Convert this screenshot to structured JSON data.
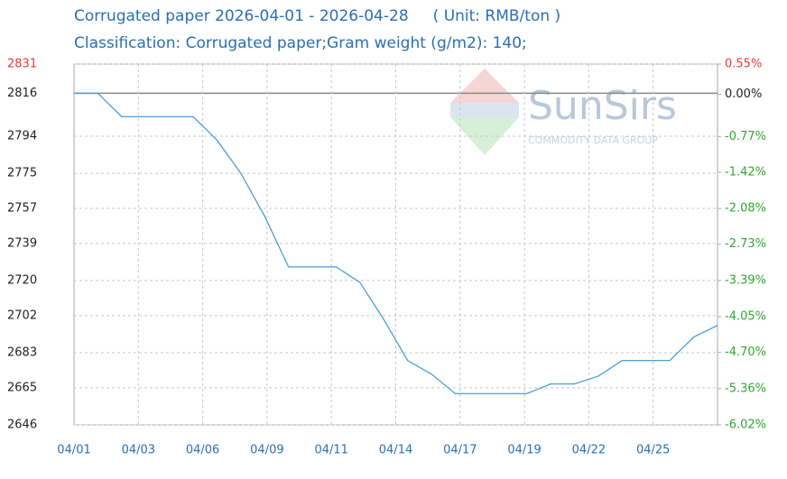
{
  "chart_data": {
    "type": "line",
    "title": "Corrugated paper 2026-04-01 - 2026-04-28     ( Unit: RMB/ton )",
    "subtitle": "Classification: Corrugated paper;Gram weight (g/m2): 140;",
    "watermark": "SunSirs",
    "watermark_sub": "COMMODITY DATA GROUP",
    "xticks": [
      "04/01",
      "04/03",
      "04/06",
      "04/09",
      "04/11",
      "04/14",
      "04/17",
      "04/19",
      "04/22",
      "04/25"
    ],
    "values": [
      2816,
      2816,
      2804,
      2804,
      2804,
      2804,
      2792,
      2775,
      2753,
      2727,
      2727,
      2727,
      2719,
      2700,
      2679,
      2672,
      2662,
      2662,
      2662,
      2662,
      2667,
      2667,
      2671,
      2679,
      2679,
      2679,
      2691,
      2697
    ],
    "color": "#4a9fd8",
    "reference": 2816,
    "ylim": [
      2646,
      2831
    ],
    "yticks": [
      2831,
      2816,
      2794,
      2775,
      2757,
      2739,
      2720,
      2702,
      2683,
      2665,
      2646
    ],
    "y2lim": [
      -6.02,
      0.55
    ],
    "y2ticks": [
      {
        "value": 0.55,
        "label": "0.55%"
      },
      {
        "value": 0,
        "label": "0.00%"
      },
      {
        "value": -0.77,
        "label": "-0.77%"
      },
      {
        "value": -1.42,
        "label": "-1.42%"
      },
      {
        "value": -2.08,
        "label": "-2.08%"
      },
      {
        "value": -2.73,
        "label": "-2.73%"
      },
      {
        "value": -3.39,
        "label": "-3.39%"
      },
      {
        "value": -4.05,
        "label": "-4.05%"
      },
      {
        "value": -4.7,
        "label": "-4.70%"
      },
      {
        "value": -5.36,
        "label": "-5.36%"
      },
      {
        "value": -6.02,
        "label": "-6.02%"
      }
    ],
    "up_color": "#e8383d",
    "down_color": "#2fa82f",
    "grid": true
  }
}
